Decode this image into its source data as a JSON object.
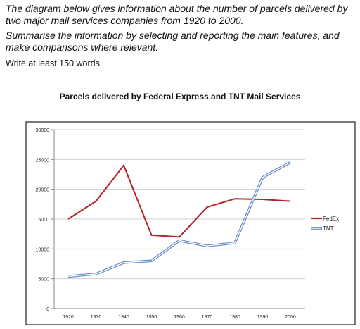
{
  "task": {
    "line1": "The diagram below gives information about the number of parcels delivered by two major mail services companies from 1920 to 2000.",
    "line2": "Summarise the information by selecting and reporting the main features, and make comparisons where relevant.",
    "line3": "Write at least 150 words."
  },
  "colors": {
    "fedex": "#b41e28",
    "tnt": "#5b86c7",
    "grid": "#cfcfcf",
    "frame": "#222222"
  },
  "chart_data": {
    "type": "line",
    "title": "Parcels delivered by Federal Express and TNT Mail Services",
    "xlabel": "",
    "ylabel": "",
    "categories": [
      "1920",
      "1930",
      "1940",
      "1950",
      "1960",
      "1970",
      "1980",
      "1990",
      "2000"
    ],
    "yticks": [
      "0",
      "5000",
      "10000",
      "15000",
      "20000",
      "25000",
      "30000"
    ],
    "ylim": [
      0,
      30000
    ],
    "grid": true,
    "legend": "right",
    "series": [
      {
        "name": "FedEx",
        "values": [
          15000,
          18000,
          24000,
          12300,
          12000,
          17000,
          18400,
          18300,
          18000
        ]
      },
      {
        "name": "TNT",
        "values": [
          5400,
          5800,
          7700,
          8000,
          11400,
          10500,
          11000,
          22000,
          24500
        ]
      }
    ]
  }
}
